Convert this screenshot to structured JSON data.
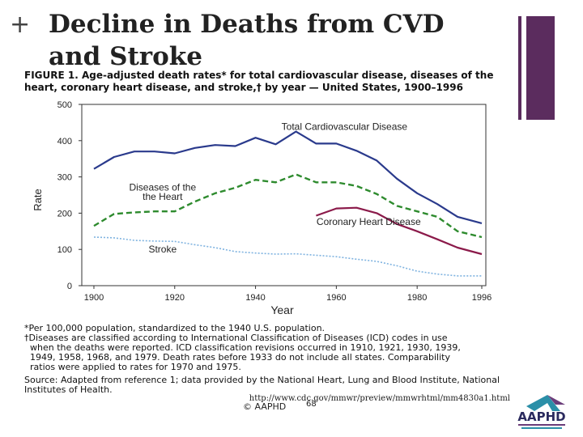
{
  "slide": {
    "plus": "+",
    "title": "Decline in Deaths from CVD and Stroke",
    "url": "http://www.cdc.gov/mmwr/preview/mmwrhtml/mm4830a1.html",
    "copyright": "© AAPHD",
    "page_number": "68",
    "logo_text": "AAPHD",
    "accent_color": "#5b2c5e"
  },
  "figure": {
    "caption": "FIGURE 1. Age-adjusted death rates* for total cardiovascular disease, diseases of the heart, coronary heart disease, and stroke,† by year — United States, 1900–1996",
    "footnotes": [
      "*Per 100,000 population, standardized to the 1940 U.S. population.",
      "†Diseases are classified according to International Classification of Diseases (ICD) codes in use\n  when the deaths were reported. ICD classification revisions occurred in 1910, 1921, 1930, 1939,\n  1949, 1958, 1968, and 1979. Death rates before 1933 do not include all states. Comparability\n  ratios were applied to rates for 1970 and 1975."
    ],
    "source": "Source: Adapted from reference 1; data provided by the National Heart, Lung and Blood Institute, National Institutes of Health."
  },
  "chart_data": {
    "type": "line",
    "title": "",
    "xlabel": "Year",
    "ylabel": "Rate",
    "xlim": [
      1897,
      1997
    ],
    "ylim": [
      0,
      500
    ],
    "xticks": [
      1900,
      1920,
      1940,
      1960,
      1980,
      1996
    ],
    "yticks": [
      0,
      100,
      200,
      300,
      400,
      500
    ],
    "grid": false,
    "series": [
      {
        "name": "Total Cardiovascular Disease",
        "color": "#2a3a8c",
        "style": "solid",
        "x": [
          1900,
          1905,
          1910,
          1915,
          1920,
          1925,
          1930,
          1935,
          1940,
          1945,
          1950,
          1955,
          1960,
          1965,
          1970,
          1975,
          1980,
          1985,
          1990,
          1996
        ],
        "y": [
          322,
          355,
          370,
          370,
          365,
          380,
          388,
          385,
          408,
          390,
          425,
          392,
          392,
          372,
          345,
          295,
          255,
          225,
          190,
          172
        ]
      },
      {
        "name": "Diseases of the Heart",
        "color": "#2e8b2e",
        "style": "dashed",
        "x": [
          1900,
          1905,
          1910,
          1915,
          1920,
          1925,
          1930,
          1935,
          1940,
          1945,
          1950,
          1955,
          1960,
          1965,
          1970,
          1975,
          1980,
          1985,
          1990,
          1996
        ],
        "y": [
          165,
          198,
          202,
          205,
          205,
          232,
          255,
          270,
          292,
          285,
          307,
          285,
          285,
          275,
          253,
          220,
          205,
          190,
          150,
          134
        ]
      },
      {
        "name": "Coronary Heart Disease",
        "color": "#8b1a4a",
        "style": "solid",
        "x": [
          1955,
          1960,
          1965,
          1970,
          1975,
          1980,
          1985,
          1990,
          1996
        ],
        "y": [
          193,
          213,
          215,
          200,
          170,
          150,
          128,
          105,
          87
        ]
      },
      {
        "name": "Stroke",
        "color": "#7fb3e0",
        "style": "dotted",
        "x": [
          1900,
          1905,
          1910,
          1915,
          1920,
          1925,
          1930,
          1935,
          1940,
          1945,
          1950,
          1955,
          1960,
          1965,
          1970,
          1975,
          1980,
          1985,
          1990,
          1996
        ],
        "y": [
          134,
          132,
          125,
          123,
          122,
          113,
          105,
          94,
          90,
          87,
          88,
          84,
          80,
          73,
          67,
          55,
          40,
          32,
          27,
          27
        ]
      }
    ],
    "annotations": [
      {
        "text": "Total Cardiovascular Disease",
        "x": 1962,
        "y": 430
      },
      {
        "text": "Diseases of the",
        "x": 1917,
        "y": 262
      },
      {
        "text": "the Heart",
        "x": 1917,
        "y": 237
      },
      {
        "text": "Coronary Heart Disease",
        "x": 1968,
        "y": 167
      },
      {
        "text": "Stroke",
        "x": 1917,
        "y": 91
      }
    ]
  }
}
